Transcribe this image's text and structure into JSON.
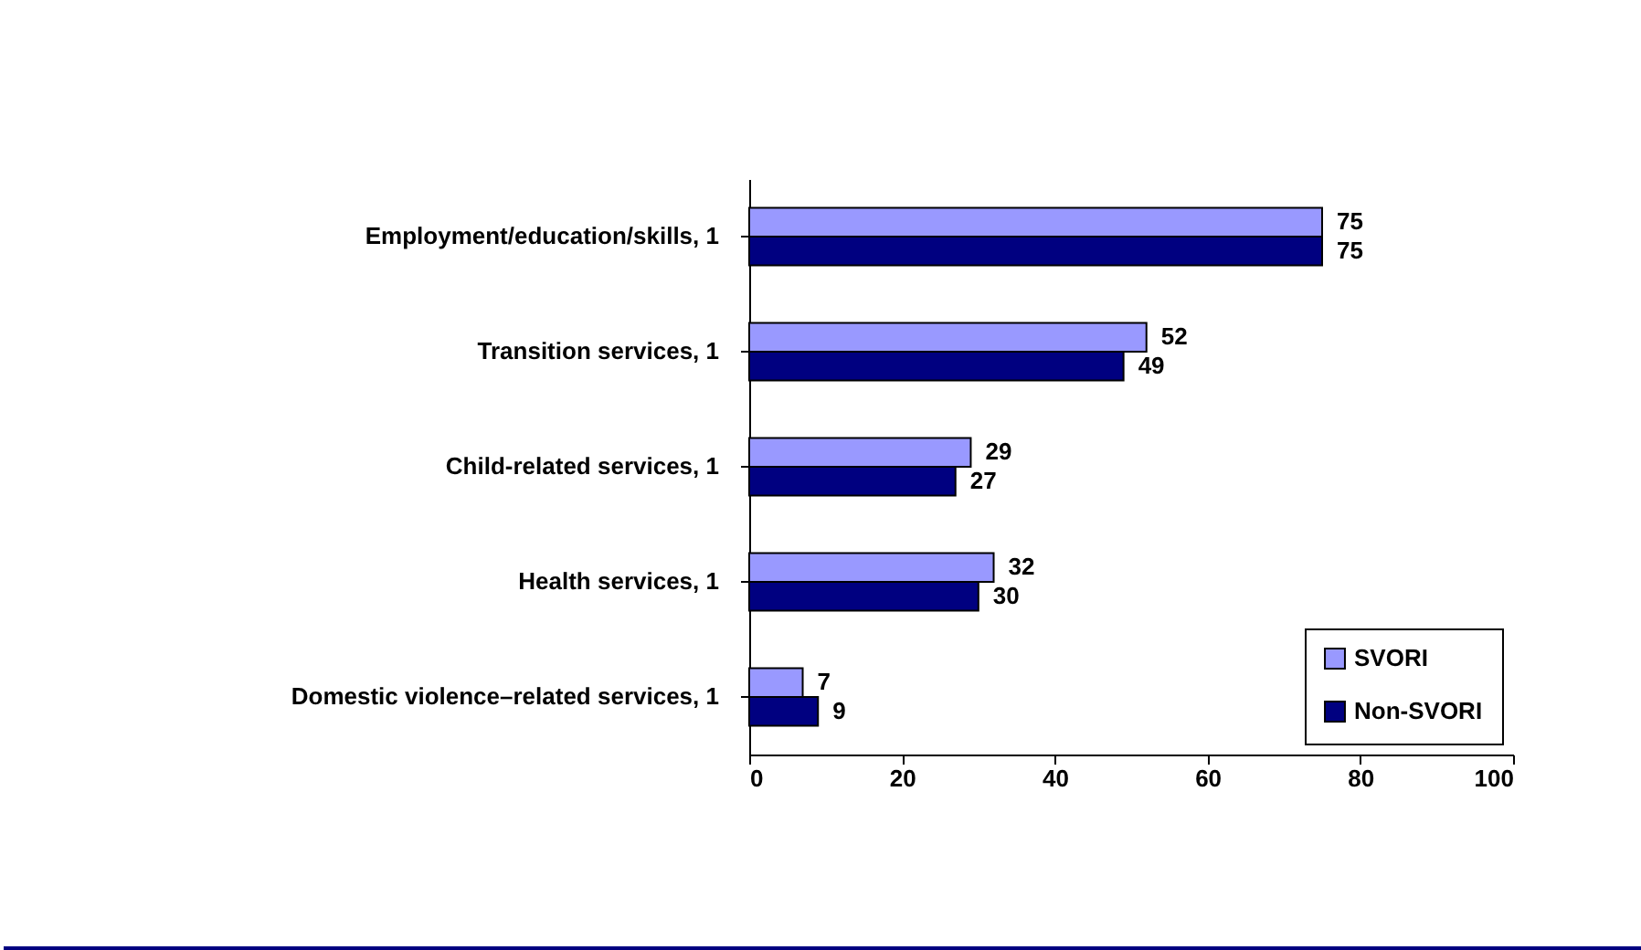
{
  "chart_data": {
    "type": "bar",
    "orientation": "horizontal",
    "categories": [
      "Employment/education/skills, 1",
      "Transition services, 1",
      "Child-related services, 1",
      "Health services, 1",
      "Domestic violence–related services, 1"
    ],
    "series": [
      {
        "name": "SVORI",
        "color": "#9999ff",
        "values": [
          75,
          52,
          29,
          32,
          7
        ]
      },
      {
        "name": "Non-SVORI",
        "color": "#000080",
        "values": [
          75,
          49,
          27,
          30,
          9
        ]
      }
    ],
    "xlim": [
      0,
      100
    ],
    "xticks": [
      0,
      20,
      40,
      60,
      80,
      100
    ],
    "data_labels": true,
    "legend": "bottom right",
    "grid": false
  }
}
